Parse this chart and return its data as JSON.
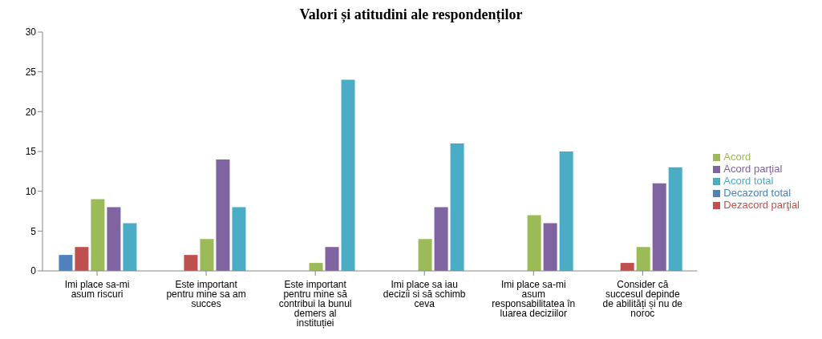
{
  "chart_data": {
    "type": "bar",
    "title": "Valori și atitudini ale respondenților",
    "categories": [
      "Imi place sa-mi asum riscuri",
      "Este important pentru mine sa am succes",
      "Este important pentru mine să contribui la bunul demers al instituției",
      "Imi place sa iau decizii si să schimb ceva",
      "Imi place sa-mi asum responsabilitatea în luarea deciziilor",
      "Consider că succesul depinde de abilități și nu de noroc"
    ],
    "series": [
      {
        "name": "Decazord total",
        "color": "#4f81bd",
        "values": [
          2,
          0,
          0,
          0,
          0,
          0
        ]
      },
      {
        "name": "Dezacord parţial",
        "color": "#c0504d",
        "values": [
          3,
          2,
          0,
          0,
          0,
          1
        ]
      },
      {
        "name": "Acord",
        "color": "#9bbb59",
        "values": [
          9,
          4,
          1,
          4,
          7,
          3
        ]
      },
      {
        "name": "Acord parţial",
        "color": "#8064a2",
        "values": [
          8,
          14,
          3,
          8,
          6,
          11
        ]
      },
      {
        "name": "Acord total",
        "color": "#4bacc6",
        "values": [
          6,
          8,
          24,
          16,
          15,
          13
        ]
      }
    ],
    "ylim": [
      0,
      30
    ],
    "yticks": [
      0,
      5,
      10,
      15,
      20,
      25,
      30
    ],
    "grid": false,
    "legend": "right"
  }
}
